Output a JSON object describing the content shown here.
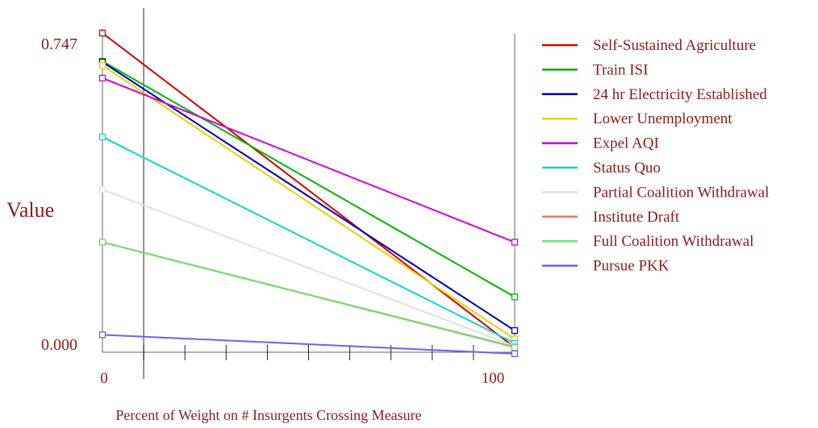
{
  "chart_data": {
    "type": "line",
    "title": "",
    "xlabel": "Percent of Weight on # Insurgents Crossing Measure",
    "ylabel": "Value",
    "x": [
      0,
      100
    ],
    "x_tick_labels": [
      "0",
      "100"
    ],
    "y_tick_labels": [
      "0.747",
      "0.000"
    ],
    "ylim": [
      0,
      0.747
    ],
    "current_weight_marker": 10,
    "grid": false,
    "legend_position": "right",
    "series": [
      {
        "name": "Self-Sustained Agriculture",
        "color": "#cc0000",
        "values": [
          0.747,
          0.0
        ]
      },
      {
        "name": "Train ISI",
        "color": "#00b400",
        "values": [
          0.68,
          0.12
        ]
      },
      {
        "name": "24 hr Electricity Established",
        "color": "#0000b4",
        "values": [
          0.678,
          0.04
        ]
      },
      {
        "name": "Lower Unemployment",
        "color": "#e6d200",
        "values": [
          0.67,
          0.02
        ]
      },
      {
        "name": "Expel AQI",
        "color": "#d400d4",
        "values": [
          0.64,
          0.25
        ]
      },
      {
        "name": "Status Quo",
        "color": "#14d2d2",
        "values": [
          0.5,
          0.01
        ]
      },
      {
        "name": "Partial Coalition Withdrawal",
        "color": "#e0e0e0",
        "values": [
          0.375,
          0.003
        ]
      },
      {
        "name": "Institute Draft",
        "color": "#f07070",
        "values": [
          0.25,
          0.001
        ]
      },
      {
        "name": "Full Coalition Withdrawal",
        "color": "#6ee06e",
        "values": [
          0.25,
          0.0
        ]
      },
      {
        "name": "Pursue PKK",
        "color": "#6464f0",
        "values": [
          0.03,
          -0.015
        ]
      }
    ]
  }
}
